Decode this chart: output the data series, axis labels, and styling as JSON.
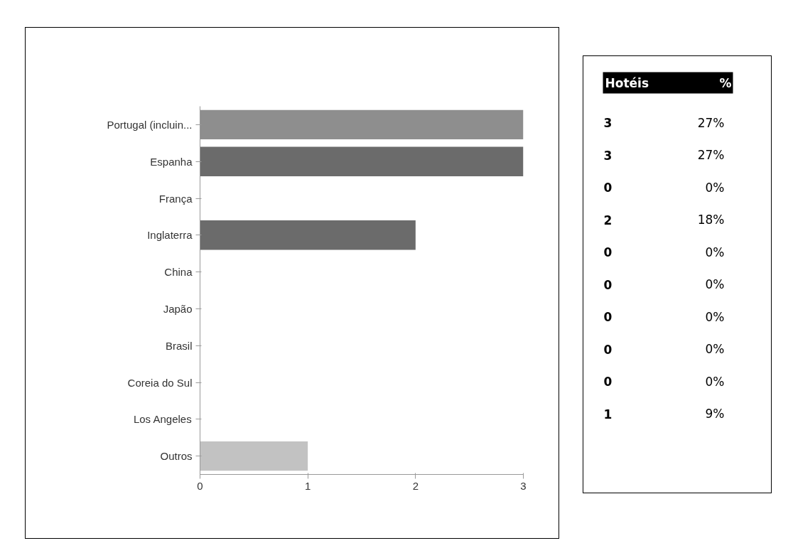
{
  "chart_data": [
    {
      "type": "bar",
      "orientation": "horizontal",
      "categories": [
        "Portugal (incluin...",
        "Espanha",
        "França",
        "Inglaterra",
        "China",
        "Japão",
        "Brasil",
        "Coreia do Sul",
        "Los Angeles",
        "Outros"
      ],
      "values": [
        3,
        3,
        0,
        2,
        0,
        0,
        0,
        0,
        0,
        1
      ],
      "colors": [
        "#8e8e8e",
        "#6b6b6b",
        "#6b6b6b",
        "#6b6b6b",
        "#6b6b6b",
        "#6b6b6b",
        "#6b6b6b",
        "#6b6b6b",
        "#6b6b6b",
        "#c2c2c2"
      ],
      "xlim": [
        0,
        3
      ],
      "xticks": [
        0,
        1,
        2,
        3
      ],
      "grid": false
    },
    {
      "type": "other",
      "annotations": [
        "Hotéis",
        "%",
        "3",
        "27%",
        "3",
        "27%",
        "0",
        "0%",
        "2",
        "18%",
        "0",
        "0%",
        "0",
        "0%",
        "0",
        "0%",
        "0",
        "0%",
        "0",
        "0%",
        "1",
        "9%"
      ]
    }
  ]
}
